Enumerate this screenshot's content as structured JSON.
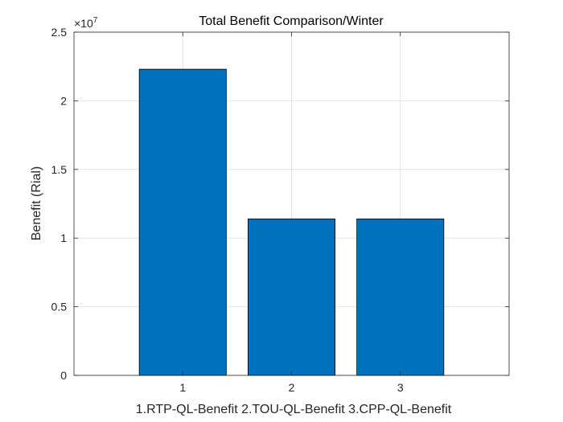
{
  "chart_data": {
    "type": "bar",
    "title": "Total Benefit Comparison/Winter",
    "xlabel": "1.RTP-QL-Benefit 2.TOU-QL-Benefit 3.CPP-QL-Benefit",
    "ylabel": "Benefit (Rial)",
    "categories": [
      "1",
      "2",
      "3"
    ],
    "values": [
      22300000,
      11400000,
      11400000
    ],
    "xlim": [
      0,
      4
    ],
    "ylim": [
      0,
      25000000
    ],
    "y_ticks": [
      0,
      5000000,
      10000000,
      15000000,
      20000000,
      25000000
    ],
    "y_tick_labels": [
      "0",
      "0.5",
      "1",
      "1.5",
      "2",
      "2.5"
    ],
    "y_exponent_base": "×10",
    "y_exponent_power": "7",
    "grid": true,
    "bar_color": "#0072BD",
    "bar_edge_color": "#000000",
    "bar_width": 0.8
  }
}
